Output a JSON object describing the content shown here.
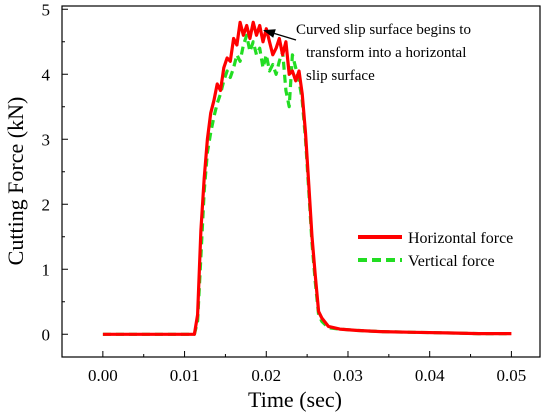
{
  "chart_data": {
    "type": "line",
    "title": "",
    "xlabel": "Time (sec)",
    "ylabel": "Cutting Force (kN)",
    "xlim": [
      -0.005,
      0.0535
    ],
    "ylim": [
      -0.35,
      5.05
    ],
    "xticks": [
      0.0,
      0.01,
      0.02,
      0.03,
      0.04,
      0.05
    ],
    "xtick_labels": [
      "0.00",
      "0.01",
      "0.02",
      "0.03",
      "0.04",
      "0.05"
    ],
    "yticks": [
      0,
      1,
      2,
      3,
      4,
      5
    ],
    "ytick_labels": [
      "0",
      "1",
      "2",
      "3",
      "4",
      "5"
    ],
    "grid": false,
    "legend_position": "lower-right",
    "annotation": {
      "lines": [
        "Curved slip surface begins to",
        "transform  into a horizontal",
        "slip surface"
      ],
      "points_to": [
        0.0196,
        4.68
      ]
    },
    "series": [
      {
        "name": "Horizontal force",
        "color": "#ff0000",
        "style": "solid",
        "x": [
          0,
          0.0112,
          0.0116,
          0.012,
          0.0124,
          0.0128,
          0.0132,
          0.0136,
          0.014,
          0.0144,
          0.0148,
          0.0152,
          0.0156,
          0.016,
          0.0164,
          0.0168,
          0.0172,
          0.0176,
          0.018,
          0.0184,
          0.0188,
          0.0192,
          0.0196,
          0.02,
          0.0204,
          0.0208,
          0.0212,
          0.0216,
          0.022,
          0.0224,
          0.0228,
          0.0232,
          0.0236,
          0.024,
          0.0244,
          0.0248,
          0.0252,
          0.0256,
          0.026,
          0.0264,
          0.0268,
          0.0276,
          0.029,
          0.031,
          0.034,
          0.038,
          0.042,
          0.046,
          0.05
        ],
        "values": [
          0,
          0,
          0.3,
          1.6,
          2.4,
          3.0,
          3.4,
          3.6,
          3.85,
          3.75,
          4.1,
          4.25,
          4.2,
          4.55,
          4.45,
          4.8,
          4.6,
          4.75,
          4.55,
          4.8,
          4.6,
          4.75,
          4.5,
          4.7,
          4.5,
          4.3,
          4.4,
          4.55,
          4.3,
          4.5,
          4.0,
          4.05,
          3.9,
          4.05,
          3.7,
          3.1,
          2.3,
          1.5,
          0.9,
          0.35,
          0.25,
          0.12,
          0.08,
          0.06,
          0.04,
          0.03,
          0.02,
          0.01,
          0.01
        ]
      },
      {
        "name": "Vertical force",
        "color": "#22dd22",
        "style": "dashed",
        "x": [
          0,
          0.0112,
          0.0116,
          0.012,
          0.0124,
          0.0128,
          0.0132,
          0.0136,
          0.014,
          0.0144,
          0.0148,
          0.0152,
          0.0156,
          0.016,
          0.0164,
          0.0168,
          0.0172,
          0.0176,
          0.018,
          0.0184,
          0.0188,
          0.0192,
          0.0196,
          0.02,
          0.0204,
          0.0208,
          0.0212,
          0.0216,
          0.022,
          0.0224,
          0.0228,
          0.0232,
          0.0236,
          0.024,
          0.0244,
          0.0248,
          0.0252,
          0.0256,
          0.026,
          0.0264,
          0.0268,
          0.0276,
          0.029,
          0.031,
          0.034,
          0.038,
          0.042,
          0.046,
          0.05
        ],
        "values": [
          0,
          0,
          0.2,
          1.2,
          2.2,
          2.8,
          3.1,
          3.35,
          3.55,
          3.7,
          3.9,
          4.05,
          3.95,
          4.1,
          4.3,
          4.2,
          4.45,
          4.6,
          4.35,
          4.5,
          4.3,
          4.4,
          4.1,
          4.3,
          4.05,
          4.15,
          4.0,
          4.2,
          4.35,
          3.75,
          3.5,
          4.3,
          4.1,
          3.9,
          3.6,
          3.0,
          2.2,
          1.4,
          0.8,
          0.3,
          0.2,
          0.1,
          0.08,
          0.06,
          0.04,
          0.03,
          0.02,
          0.01,
          0.01
        ]
      }
    ]
  }
}
